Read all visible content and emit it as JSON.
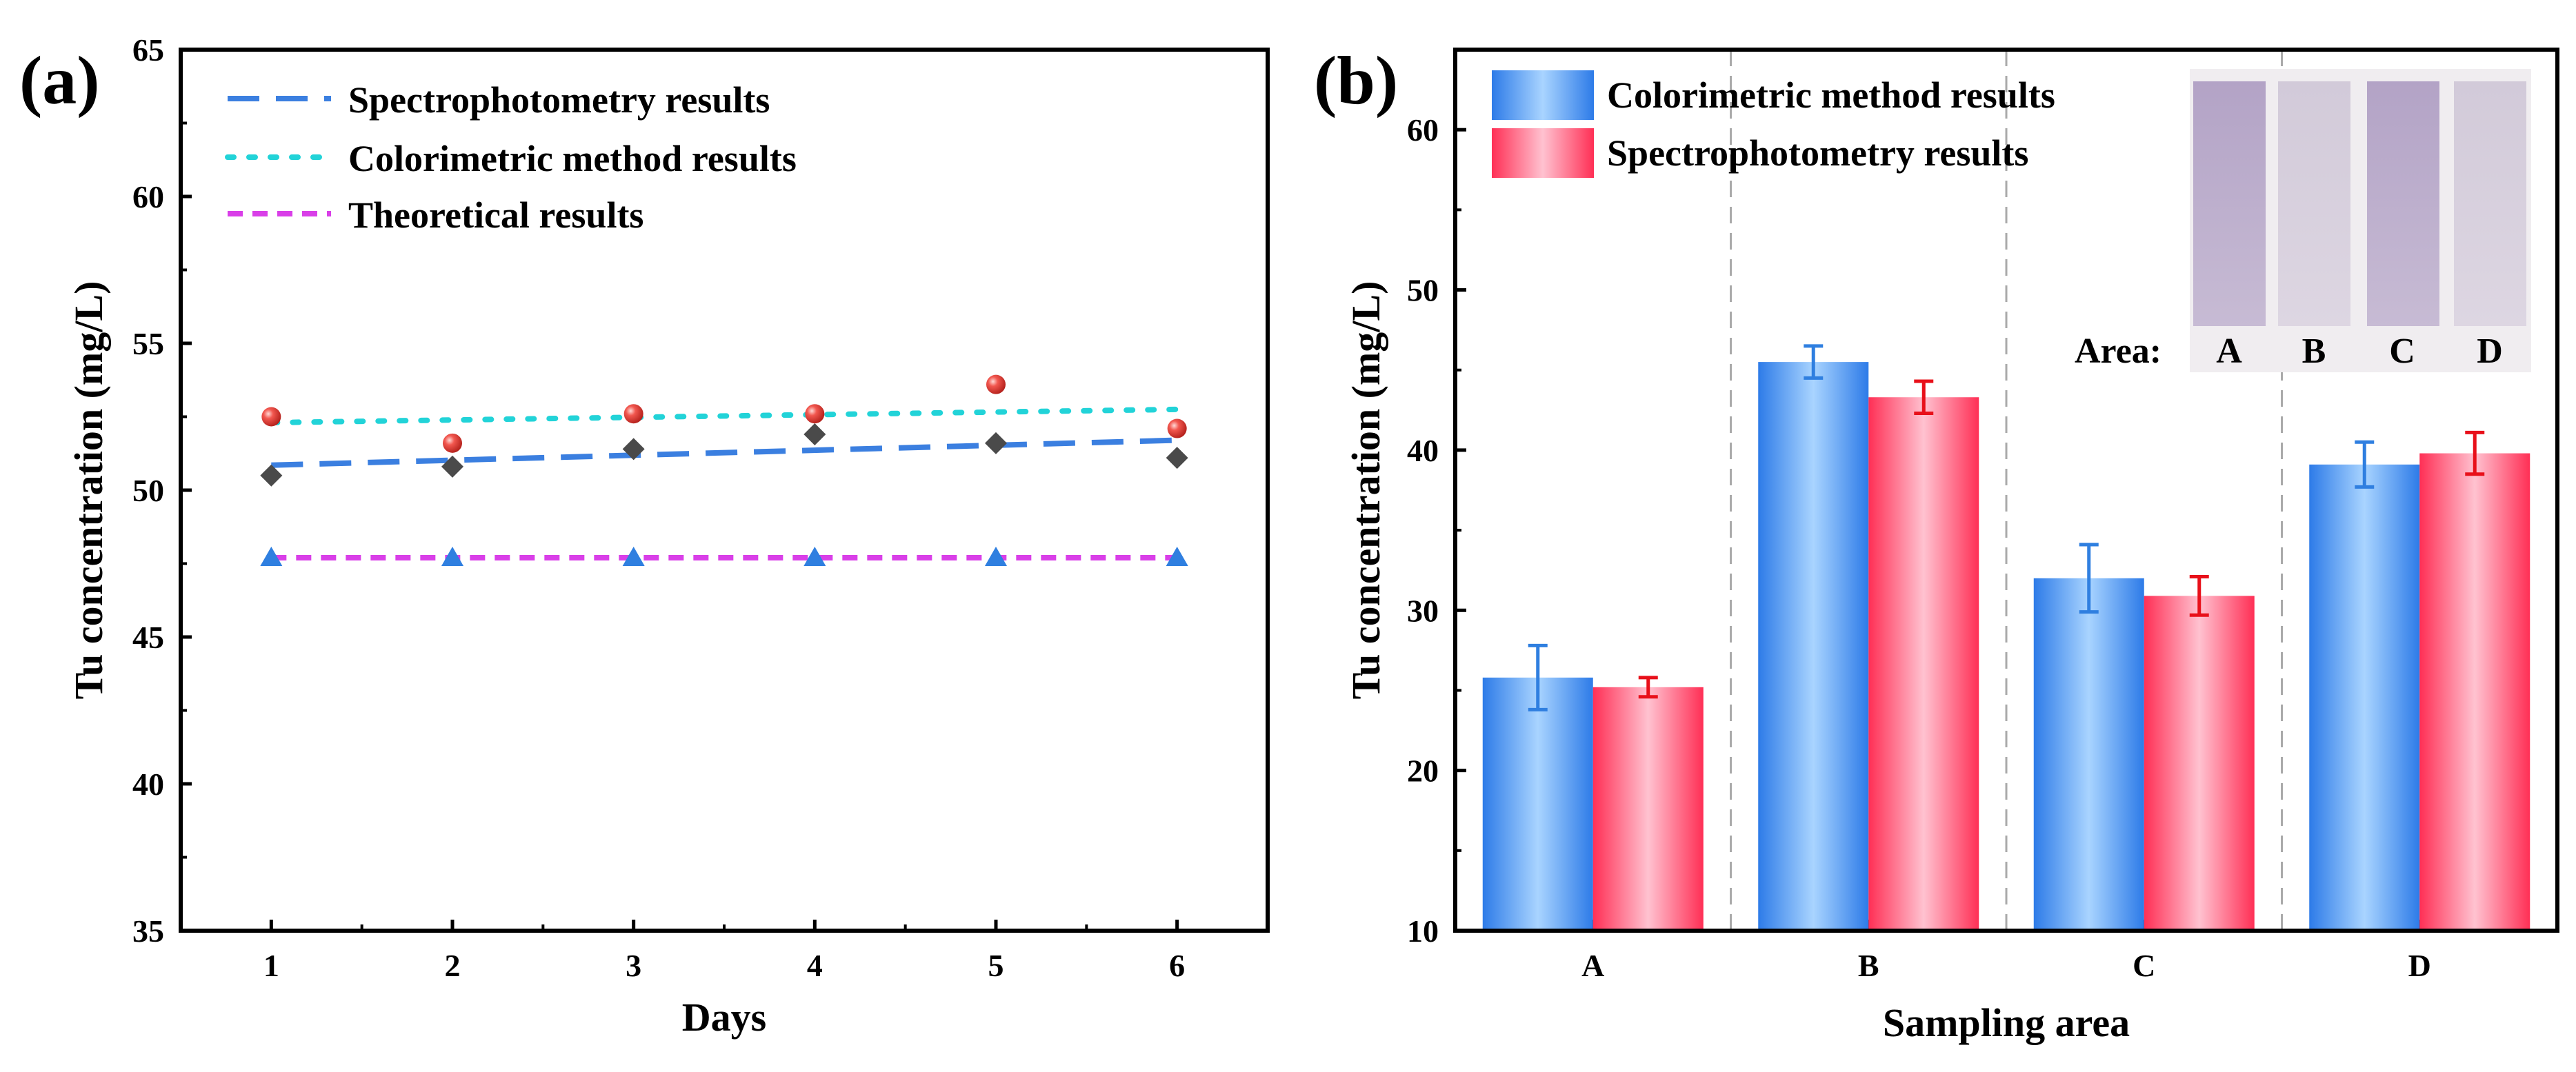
{
  "figure": {
    "panel_a_label": "(a)",
    "panel_b_label": "(b)"
  },
  "chart_data": [
    {
      "type": "scatter",
      "panel": "(a)",
      "xlabel": "Days",
      "ylabel": "Tu concentration (mg/L)",
      "xlim": [
        0.5,
        6.5
      ],
      "ylim": [
        35,
        65
      ],
      "xticks": [
        1,
        2,
        3,
        4,
        5,
        6
      ],
      "yticks": [
        35,
        40,
        45,
        50,
        55,
        60,
        65
      ],
      "legend_position": "top-left",
      "legend": [
        "Spectrophotometry results",
        "Colorimetric method results",
        "Theoretical results"
      ],
      "series": [
        {
          "name": "Spectrophotometry results",
          "marker": "diamond",
          "color": "#4a4a4a",
          "line_color": "#3b7fe0",
          "line_style": "long-dash",
          "x": [
            1,
            2,
            3,
            4,
            5,
            6
          ],
          "values": [
            50.5,
            50.8,
            51.4,
            51.9,
            51.6,
            51.1
          ],
          "fit": [
            50.85,
            51.7
          ]
        },
        {
          "name": "Colorimetric method results",
          "marker": "sphere",
          "color": "#e8413e",
          "line_color": "#22d3d8",
          "line_style": "dotted",
          "x": [
            1,
            2,
            3,
            4,
            5,
            6
          ],
          "values": [
            52.5,
            51.6,
            52.6,
            52.6,
            53.6,
            52.1
          ],
          "fit": [
            52.3,
            52.75
          ]
        },
        {
          "name": "Theoretical results",
          "marker": "triangle",
          "color": "#2f7fe0",
          "line_color": "#d93fe8",
          "line_style": "short-dash",
          "x": [
            1,
            2,
            3,
            4,
            5,
            6
          ],
          "values": [
            47.7,
            47.7,
            47.7,
            47.7,
            47.7,
            47.7
          ],
          "fit": [
            47.7,
            47.7
          ]
        }
      ]
    },
    {
      "type": "bar",
      "panel": "(b)",
      "xlabel": "Sampling area",
      "ylabel": "Tu concentration (mg/L)",
      "categories": [
        "A",
        "B",
        "C",
        "D"
      ],
      "ylim": [
        10,
        65
      ],
      "yticks": [
        10,
        20,
        30,
        40,
        50,
        60
      ],
      "legend_position": "top-left",
      "series": [
        {
          "name": "Colorimetric method results",
          "color": "#3f8fee",
          "values": [
            25.8,
            45.5,
            32.0,
            39.1
          ],
          "errors": [
            2.0,
            1.0,
            2.1,
            1.4
          ]
        },
        {
          "name": "Spectrophotometry results",
          "color": "#ff4f6e",
          "values": [
            25.2,
            43.3,
            30.9,
            39.8
          ],
          "errors": [
            0.6,
            1.0,
            1.2,
            1.3
          ]
        }
      ],
      "inset": {
        "label": "Area:",
        "strips": [
          "A",
          "B",
          "C",
          "D"
        ]
      }
    }
  ]
}
